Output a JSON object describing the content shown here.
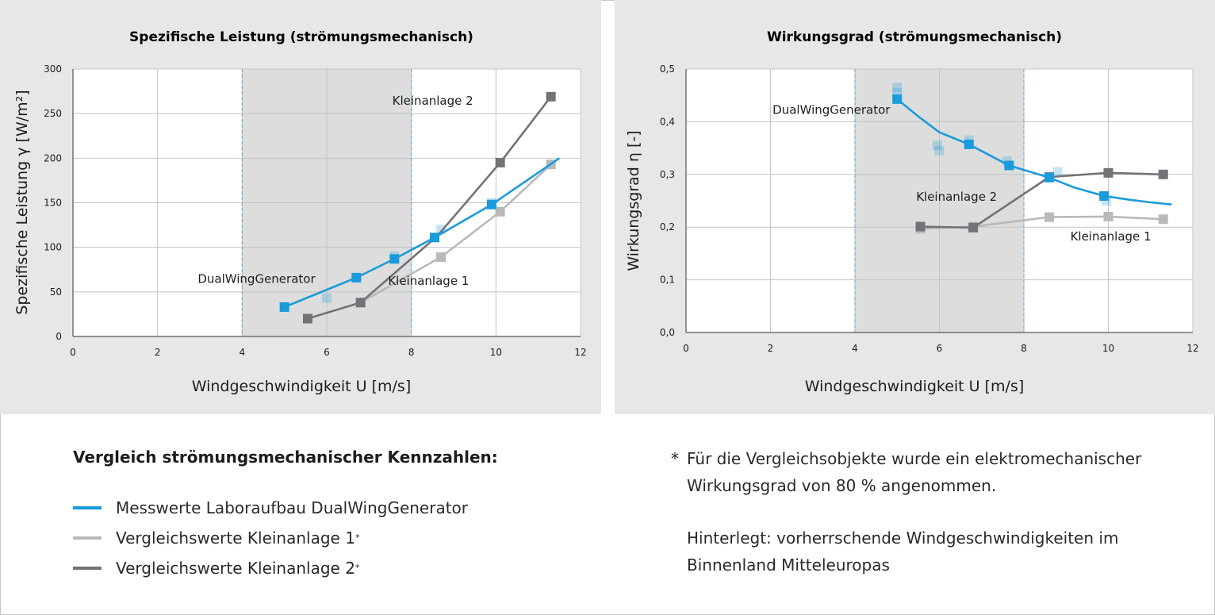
{
  "colors": {
    "dualwing": "#1a9bdc",
    "kleinanlage1": "#b8b9bb",
    "kleinanlage2": "#727376",
    "background_panel": "#e7e7e7",
    "grid": "#c4c4c4",
    "guide_line": "#5aa9d6",
    "region_shade": "#d2d2d2"
  },
  "chart_data": [
    {
      "type": "line",
      "title": "Spezifische Leistung (strömungsmechanisch)",
      "xlabel": "Windgeschwindigkeit U [m/s]",
      "ylabel": "Spezifische Leistung γ [W/m²]",
      "xlim": [
        0,
        12
      ],
      "ylim": [
        0,
        300
      ],
      "xticks": [
        "0",
        "2",
        "4",
        "6",
        "8",
        "10",
        "12"
      ],
      "yticks": [
        "0",
        "50",
        "100",
        "150",
        "200",
        "250",
        "300"
      ],
      "grid": true,
      "shaded_region_x": [
        4,
        8
      ],
      "series": [
        {
          "key": "dualwing",
          "x": [
            5.0,
            6.7,
            7.6,
            8.55,
            9.9,
            11.5
          ],
          "y": [
            33,
            66,
            87,
            111,
            148,
            200
          ],
          "markers": [
            true,
            true,
            true,
            true,
            true,
            false
          ]
        },
        {
          "key": "kleinanlage1",
          "x": [
            6.8,
            8.7,
            10.1,
            11.3
          ],
          "y": [
            38,
            89,
            140,
            193
          ],
          "markers": [
            false,
            true,
            true,
            true
          ]
        },
        {
          "key": "kleinanlage2",
          "x": [
            5.55,
            6.8,
            8.6,
            10.1,
            11.3
          ],
          "y": [
            20,
            38,
            112,
            195,
            269
          ],
          "markers": [
            true,
            true,
            false,
            true,
            true
          ]
        }
      ],
      "scatter_points": {
        "x": [
          6.0,
          7.6,
          8.7,
          9.9,
          5.0
        ],
        "y": [
          43,
          90,
          120,
          150,
          33
        ]
      },
      "annotations": [
        {
          "text": "Kleinanlage 2",
          "x": 7.55,
          "y": 260
        },
        {
          "text": "Kleinanlage 1",
          "x": 7.45,
          "y": 58
        },
        {
          "text": "DualWingGenerator",
          "x": 2.95,
          "y": 60
        }
      ]
    },
    {
      "type": "line",
      "title": "Wirkungsgrad (strömungsmechanisch)",
      "xlabel": "Windgeschwindigkeit U [m/s]",
      "ylabel": "Wirkungsgrad η [-]",
      "xlim": [
        0,
        12
      ],
      "ylim": [
        0,
        0.5
      ],
      "xticks": [
        "0",
        "2",
        "4",
        "6",
        "8",
        "10",
        "12"
      ],
      "yticks": [
        "0,0",
        "0,1",
        "0,2",
        "0,3",
        "0,4",
        "0,5"
      ],
      "grid": true,
      "shaded_region_x": [
        4,
        8
      ],
      "series": [
        {
          "key": "dualwing",
          "x": [
            5.0,
            5.5,
            6.0,
            6.7,
            7.65,
            8.6,
            9.2,
            9.9,
            10.5,
            11.0,
            11.5
          ],
          "y": [
            0.443,
            0.41,
            0.38,
            0.357,
            0.317,
            0.294,
            0.275,
            0.259,
            0.252,
            0.247,
            0.243
          ],
          "markers": [
            true,
            false,
            false,
            true,
            true,
            true,
            false,
            true,
            false,
            false,
            false
          ]
        },
        {
          "key": "kleinanlage1",
          "x": [
            5.55,
            6.8,
            8.6,
            10.0,
            11.3
          ],
          "y": [
            0.197,
            0.201,
            0.219,
            0.22,
            0.215
          ],
          "markers": [
            true,
            true,
            true,
            true,
            true
          ]
        },
        {
          "key": "kleinanlage2",
          "x": [
            5.55,
            6.8,
            8.6,
            10.0,
            11.3
          ],
          "y": [
            0.201,
            0.199,
            0.295,
            0.303,
            0.3
          ],
          "markers": [
            true,
            true,
            true,
            true,
            true
          ]
        }
      ],
      "scatter_points": {
        "x": [
          5.0,
          5.0,
          5.95,
          6.0,
          6.7,
          7.6,
          8.8,
          9.95
        ],
        "y": [
          0.465,
          0.455,
          0.355,
          0.345,
          0.365,
          0.325,
          0.305,
          0.25
        ]
      },
      "annotations": [
        {
          "text": "DualWingGenerator",
          "x": 2.05,
          "y": 0.415
        },
        {
          "text": "Kleinanlage 2",
          "x": 5.45,
          "y": 0.25
        },
        {
          "text": "Kleinanlage 1",
          "x": 9.1,
          "y": 0.175
        }
      ]
    }
  ],
  "legend": {
    "title": "Vergleich strömungsmechanischer Kennzahlen:",
    "items": [
      {
        "label": "Messwerte Laboraufbau DualWingGenerator",
        "key": "dualwing",
        "sup": ""
      },
      {
        "label": "Vergleichswerte Kleinanlage 1",
        "key": "kleinanlage1",
        "sup": "*"
      },
      {
        "label": "Vergleichswerte Kleinanlage 2",
        "key": "kleinanlage2",
        "sup": "*"
      }
    ]
  },
  "footnote": {
    "star": "*",
    "text": "Für die Vergleichsobjekte wurde ein elektromechanischer Wirkungsgrad von 80 % angenommen.",
    "background_note": "Hinterlegt: vorherrschende Windgeschwindigkeiten im Binnenland Mitteleuropas"
  }
}
